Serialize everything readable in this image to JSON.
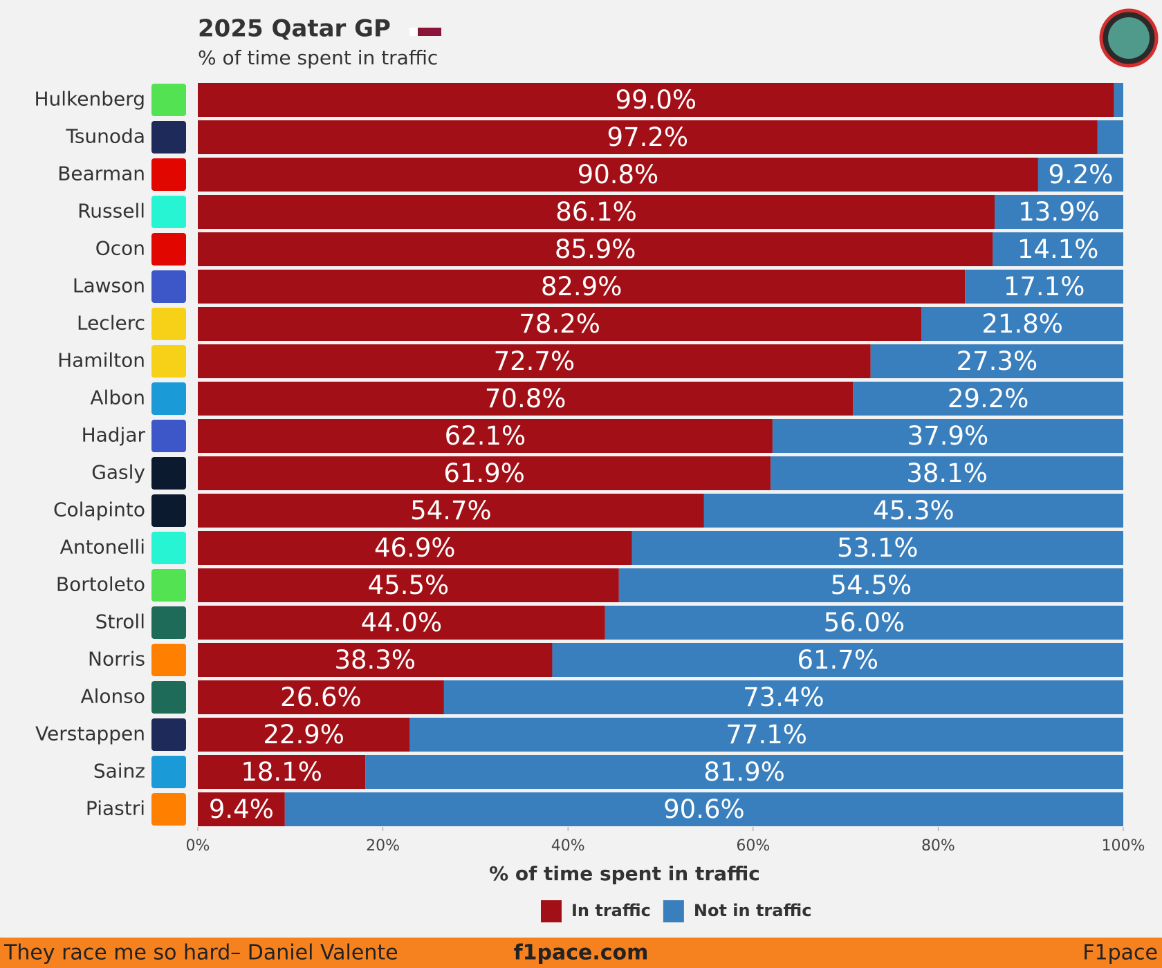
{
  "chart_data": {
    "type": "stacked-bar-horizontal",
    "title": "2025 Qatar GP",
    "subtitle": "% of time spent in traffic",
    "x_label": "% of time spent in traffic",
    "categories": [
      "Hulkenberg",
      "Tsunoda",
      "Bearman",
      "Russell",
      "Ocon",
      "Lawson",
      "Leclerc",
      "Hamilton",
      "Albon",
      "Hadjar",
      "Gasly",
      "Colapinto",
      "Antonelli",
      "Bortoleto",
      "Stroll",
      "Norris",
      "Alonso",
      "Verstappen",
      "Sainz",
      "Piastri"
    ],
    "series": [
      {
        "name": "In traffic",
        "color": "#a30f16",
        "values": [
          99.0,
          97.2,
          90.8,
          86.1,
          85.9,
          82.9,
          78.2,
          72.7,
          70.8,
          62.1,
          61.9,
          54.7,
          46.9,
          45.5,
          44.0,
          38.3,
          26.6,
          22.9,
          18.1,
          9.4
        ],
        "value_labels": [
          "99.0%",
          "97.2%",
          "90.8%",
          "86.1%",
          "85.9%",
          "82.9%",
          "78.2%",
          "72.7%",
          "70.8%",
          "62.1%",
          "61.9%",
          "54.7%",
          "46.9%",
          "45.5%",
          "44.0%",
          "38.3%",
          "26.6%",
          "22.9%",
          "18.1%",
          "9.4%"
        ]
      },
      {
        "name": "Not in traffic",
        "color": "#3a7fbd",
        "values": [
          1.0,
          2.8,
          9.2,
          13.9,
          14.1,
          17.1,
          21.8,
          27.3,
          29.2,
          37.9,
          38.1,
          45.3,
          53.1,
          54.5,
          56.0,
          61.7,
          73.4,
          77.1,
          81.9,
          90.6
        ],
        "value_labels": [
          null,
          null,
          "9.2%",
          "13.9%",
          "14.1%",
          "17.1%",
          "21.8%",
          "27.3%",
          "29.2%",
          "37.9%",
          "38.1%",
          "45.3%",
          "53.1%",
          "54.5%",
          "56.0%",
          "61.7%",
          "73.4%",
          "77.1%",
          "81.9%",
          "90.6%"
        ]
      }
    ],
    "xlim": [
      0,
      100
    ],
    "xticks": [
      {
        "value": 0,
        "label": "0%"
      },
      {
        "value": 20,
        "label": "20%"
      },
      {
        "value": 40,
        "label": "40%"
      },
      {
        "value": 60,
        "label": "60%"
      },
      {
        "value": 80,
        "label": "80%"
      },
      {
        "value": 100,
        "label": "100%"
      }
    ],
    "legend": "bottom"
  },
  "footer": {
    "quote": "They race me so hard– Daniel Valente",
    "site": "f1pace.com",
    "brand": "F1pace"
  }
}
